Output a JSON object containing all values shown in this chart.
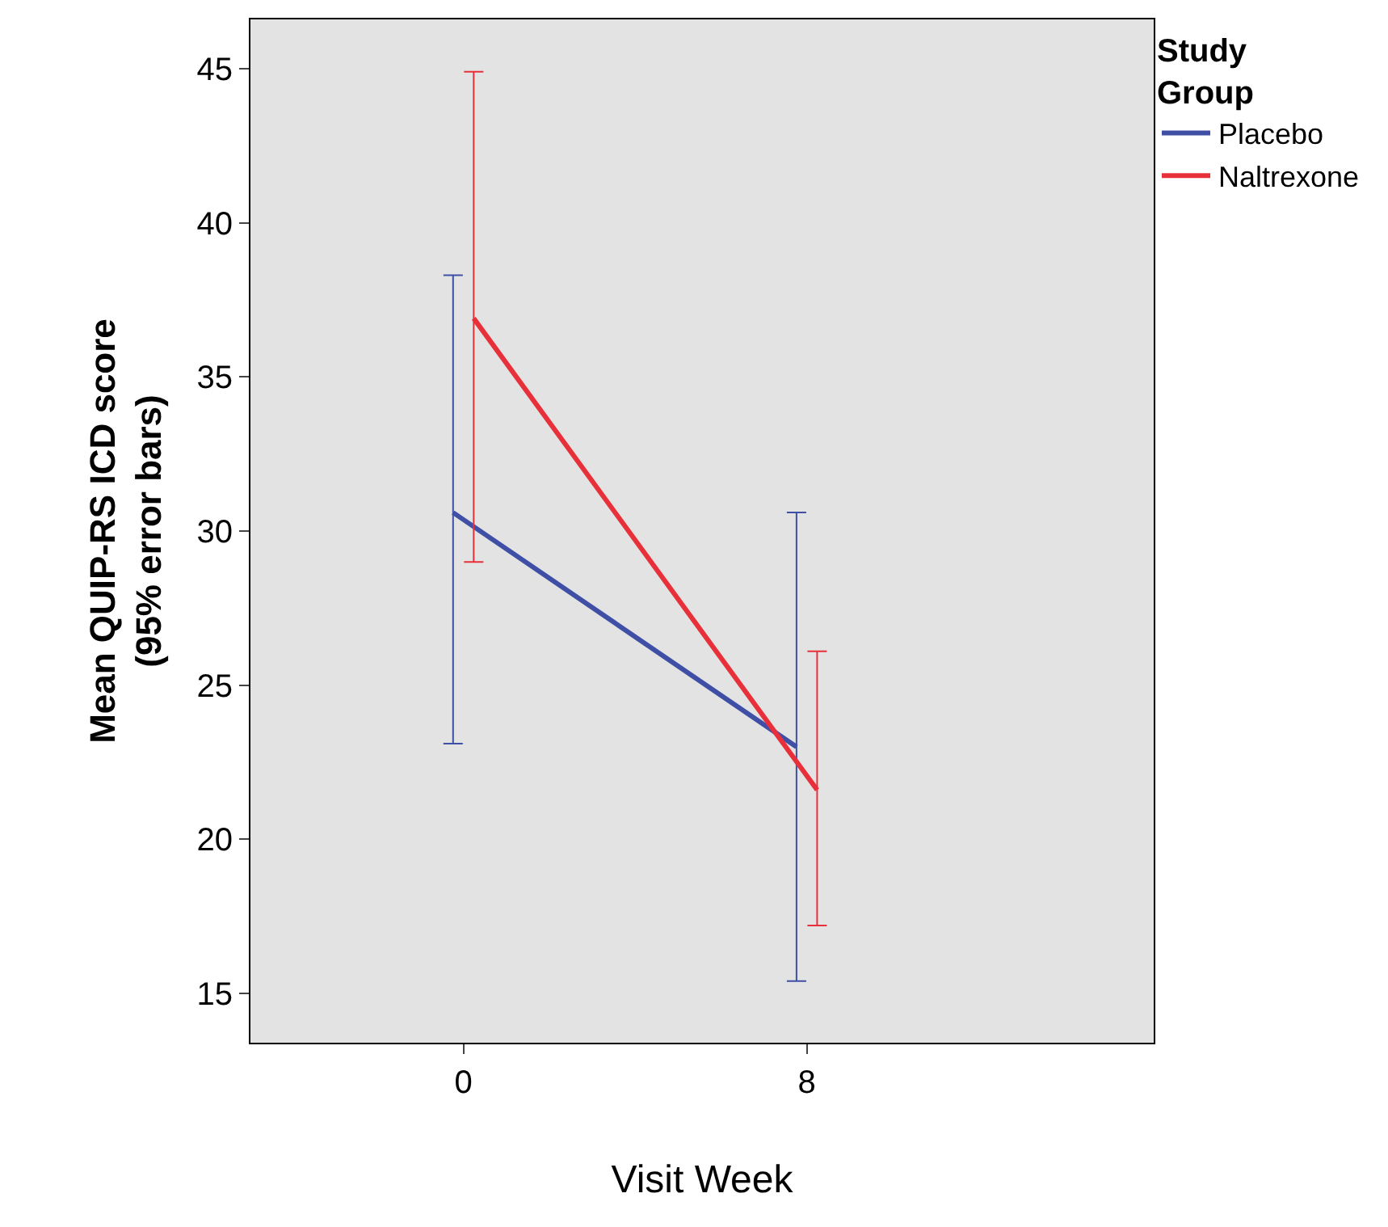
{
  "chart_data": {
    "type": "line",
    "categories": [
      "0",
      "8"
    ],
    "xlabel": "Visit Week",
    "ylabel": "Mean QUIP-RS ICD score\n(95% error bars)",
    "legend_title": "Study Group",
    "series": [
      {
        "name": "Placebo",
        "color": "#3f4fa6",
        "values": [
          30.6,
          23.0
        ],
        "errors": [
          [
            23.1,
            38.3
          ],
          [
            15.4,
            30.6
          ]
        ]
      },
      {
        "name": "Naltrexone",
        "color": "#e8303a",
        "values": [
          36.9,
          21.6
        ],
        "errors": [
          [
            29.0,
            44.9
          ],
          [
            17.2,
            26.1
          ]
        ]
      }
    ],
    "ylim": [
      13.4,
      46.6
    ],
    "yticks": [
      15,
      20,
      25,
      30,
      35,
      40,
      45
    ],
    "grid": false,
    "legend": "top right",
    "marker": "none",
    "line_style": "solid"
  }
}
